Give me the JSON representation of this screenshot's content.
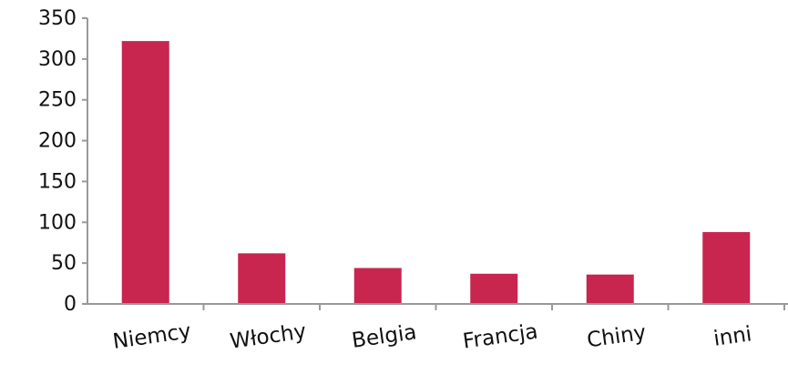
{
  "chart_data": {
    "type": "bar",
    "categories": [
      "Niemcy",
      "Włochy",
      "Belgia",
      "Francja",
      "Chiny",
      "inni"
    ],
    "values": [
      322,
      62,
      44,
      37,
      36,
      88
    ],
    "ylim": [
      0,
      350
    ],
    "yticks": [
      0,
      50,
      100,
      150,
      200,
      250,
      300,
      350
    ],
    "bar_color": "#c8254f",
    "axis_color": "#999999",
    "grid": false,
    "title": "",
    "xlabel": "",
    "ylabel": ""
  }
}
